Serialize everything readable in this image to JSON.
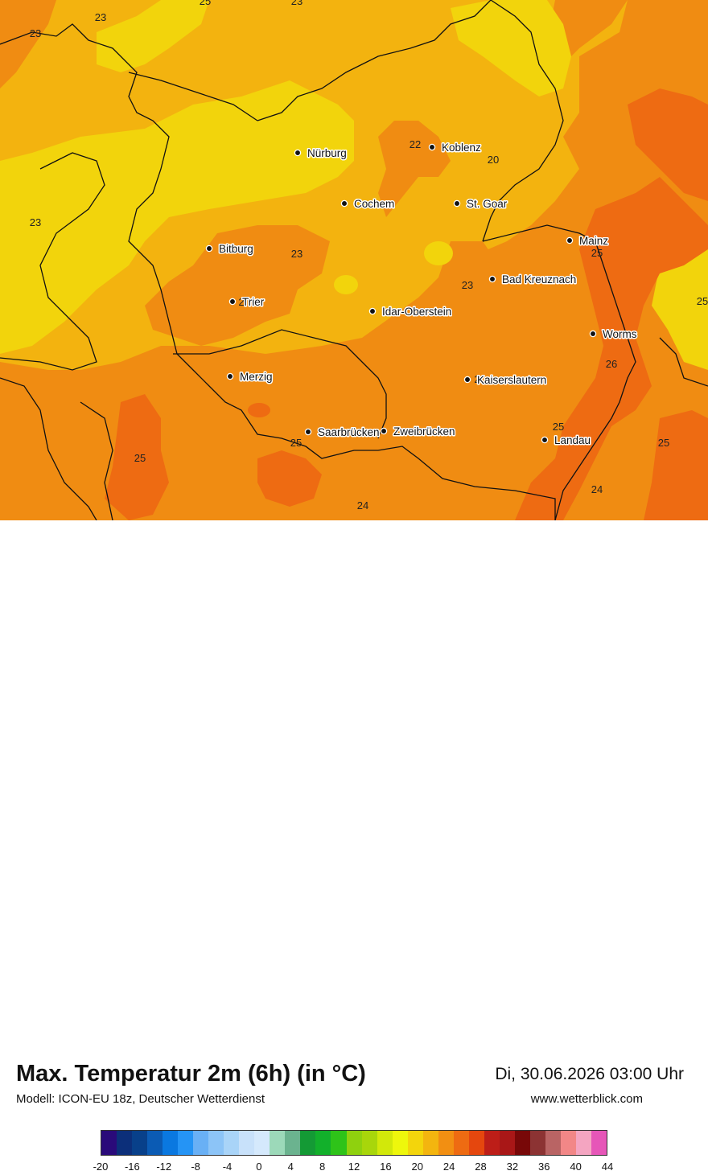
{
  "title": "Max. Temperatur 2m (6h) (in °C)",
  "model": "Modell: ICON-EU 18z, Deutscher Wetterdienst",
  "datetime": "Di, 30.06.2026 03:00 Uhr",
  "website": "www.wetterblick.com",
  "colors": {
    "t20": "#f2d40c",
    "t22": "#f3b30f",
    "t24": "#f08c12",
    "t26": "#ee6b12"
  },
  "cities": [
    {
      "name": "Nürburg",
      "id": "nuerburg"
    },
    {
      "name": "Koblenz",
      "id": "koblenz"
    },
    {
      "name": "Cochem",
      "id": "cochem"
    },
    {
      "name": "St. Goar",
      "id": "st-goar"
    },
    {
      "name": "Mainz",
      "id": "mainz"
    },
    {
      "name": "Bitburg",
      "id": "bitburg"
    },
    {
      "name": "Bad Kreuznach",
      "id": "bad-kreuznach"
    },
    {
      "name": "Trier",
      "id": "trier"
    },
    {
      "name": "Idar-Oberstein",
      "id": "idar-oberstein"
    },
    {
      "name": "Worms",
      "id": "worms"
    },
    {
      "name": "Merzig",
      "id": "merzig"
    },
    {
      "name": "Kaiserslautern",
      "id": "kaiserslautern"
    },
    {
      "name": "Saarbrücken",
      "id": "saarbruecken"
    },
    {
      "name": "Zweibrücken",
      "id": "zweibruecken"
    },
    {
      "name": "Landau",
      "id": "landau"
    }
  ],
  "iso_labels": [
    "23",
    "25",
    "23",
    "23",
    "22",
    "20",
    "23",
    "25",
    "23",
    "2",
    "23",
    "26",
    "2",
    "25",
    "25",
    "25",
    "24",
    "25",
    "24",
    "25"
  ],
  "legend": {
    "colors": [
      "#2a0a7a",
      "#0c2f7a",
      "#08408a",
      "#0b5bb4",
      "#0a78e0",
      "#2594f5",
      "#69b0f5",
      "#8cc4f7",
      "#a9d4f8",
      "#c8e1fa",
      "#d5e9fc",
      "#9cd9b9",
      "#6bb38f",
      "#149a35",
      "#12b02b",
      "#2ec319",
      "#8fd10e",
      "#a8d60b",
      "#d2e80a",
      "#eef70c",
      "#f3d50c",
      "#f3b50f",
      "#f28f12",
      "#ee6b12",
      "#e5470e",
      "#bd1e18",
      "#a91717",
      "#780808",
      "#8c3333",
      "#b96464",
      "#f28787",
      "#f4a5c1",
      "#e656b8"
    ],
    "ticks": [
      "-20",
      "-16",
      "-12",
      "-8",
      "-4",
      "0",
      "4",
      "8",
      "12",
      "16",
      "20",
      "24",
      "28",
      "32",
      "36",
      "40",
      "44"
    ]
  }
}
